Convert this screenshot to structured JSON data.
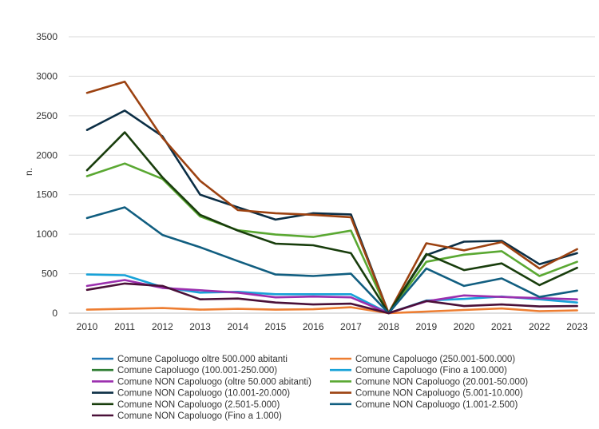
{
  "chart_data": {
    "type": "line",
    "title": "",
    "xlabel": "",
    "ylabel": "n.",
    "ylim": [
      0,
      3500
    ],
    "yticks": [
      0,
      500,
      1000,
      1500,
      2000,
      2500,
      3000,
      3500
    ],
    "grid": true,
    "legend_position": "bottom",
    "categories": [
      "2010",
      "2011",
      "2012",
      "2013",
      "2014",
      "2015",
      "2016",
      "2017",
      "2018",
      "2019",
      "2020",
      "2021",
      "2022",
      "2023"
    ],
    "series": [
      {
        "name": "Comune Capoluogo oltre 500.000 abitanti",
        "color": "#1f77b4",
        "values": [
          null,
          null,
          null,
          null,
          null,
          null,
          null,
          null,
          null,
          null,
          null,
          null,
          null,
          null
        ]
      },
      {
        "name": "Comune Capoluogo (250.001-500.000)",
        "color": "#ed7d31",
        "values": [
          45,
          55,
          65,
          45,
          55,
          45,
          50,
          75,
          0,
          20,
          40,
          60,
          25,
          35
        ]
      },
      {
        "name": "Comune Capoluogo (100.001-250.000)",
        "color": "#2e7d32",
        "values": [
          null,
          null,
          null,
          null,
          null,
          null,
          null,
          null,
          null,
          null,
          null,
          null,
          null,
          null
        ]
      },
      {
        "name": "Comune Capoluogo (Fino a 100.000)",
        "color": "#17a2d8",
        "values": [
          490,
          480,
          330,
          260,
          270,
          240,
          240,
          240,
          0,
          160,
          180,
          210,
          175,
          135
        ]
      },
      {
        "name": "Comune NON Capoluogo (oltre 50.000 abitanti)",
        "color": "#9b2fae",
        "values": [
          345,
          420,
          320,
          290,
          260,
          200,
          210,
          200,
          0,
          150,
          225,
          205,
          190,
          175
        ]
      },
      {
        "name": "Comune NON Capoluogo (20.001-50.000)",
        "color": "#5aa832",
        "values": [
          1735,
          1895,
          1700,
          1225,
          1050,
          995,
          965,
          1045,
          0,
          650,
          740,
          785,
          470,
          650
        ]
      },
      {
        "name": "Comune NON Capoluogo (10.001-20.000)",
        "color": "#0b2e45",
        "values": [
          2320,
          2565,
          2240,
          1500,
          1340,
          1185,
          1265,
          1250,
          0,
          735,
          905,
          915,
          620,
          760
        ]
      },
      {
        "name": "Comune NON Capoluogo (5.001-10.000)",
        "color": "#9c4211",
        "values": [
          2790,
          2930,
          2220,
          1675,
          1305,
          1265,
          1245,
          1215,
          0,
          885,
          795,
          900,
          565,
          810
        ]
      },
      {
        "name": "Comune NON Capoluogo (2.501-5.000)",
        "color": "#183d0c",
        "values": [
          1810,
          2290,
          1720,
          1245,
          1045,
          880,
          860,
          760,
          0,
          750,
          545,
          630,
          355,
          575
        ]
      },
      {
        "name": "Comune NON Capoluogo (1.001-2.500)",
        "color": "#115e80",
        "values": [
          1205,
          1340,
          990,
          835,
          660,
          490,
          470,
          500,
          0,
          565,
          345,
          440,
          205,
          285
        ]
      },
      {
        "name": "Comune NON Capoluogo (Fino a 1.000)",
        "color": "#4a1038",
        "values": [
          295,
          375,
          345,
          175,
          185,
          135,
          110,
          120,
          0,
          155,
          90,
          110,
          85,
          90
        ]
      }
    ]
  }
}
